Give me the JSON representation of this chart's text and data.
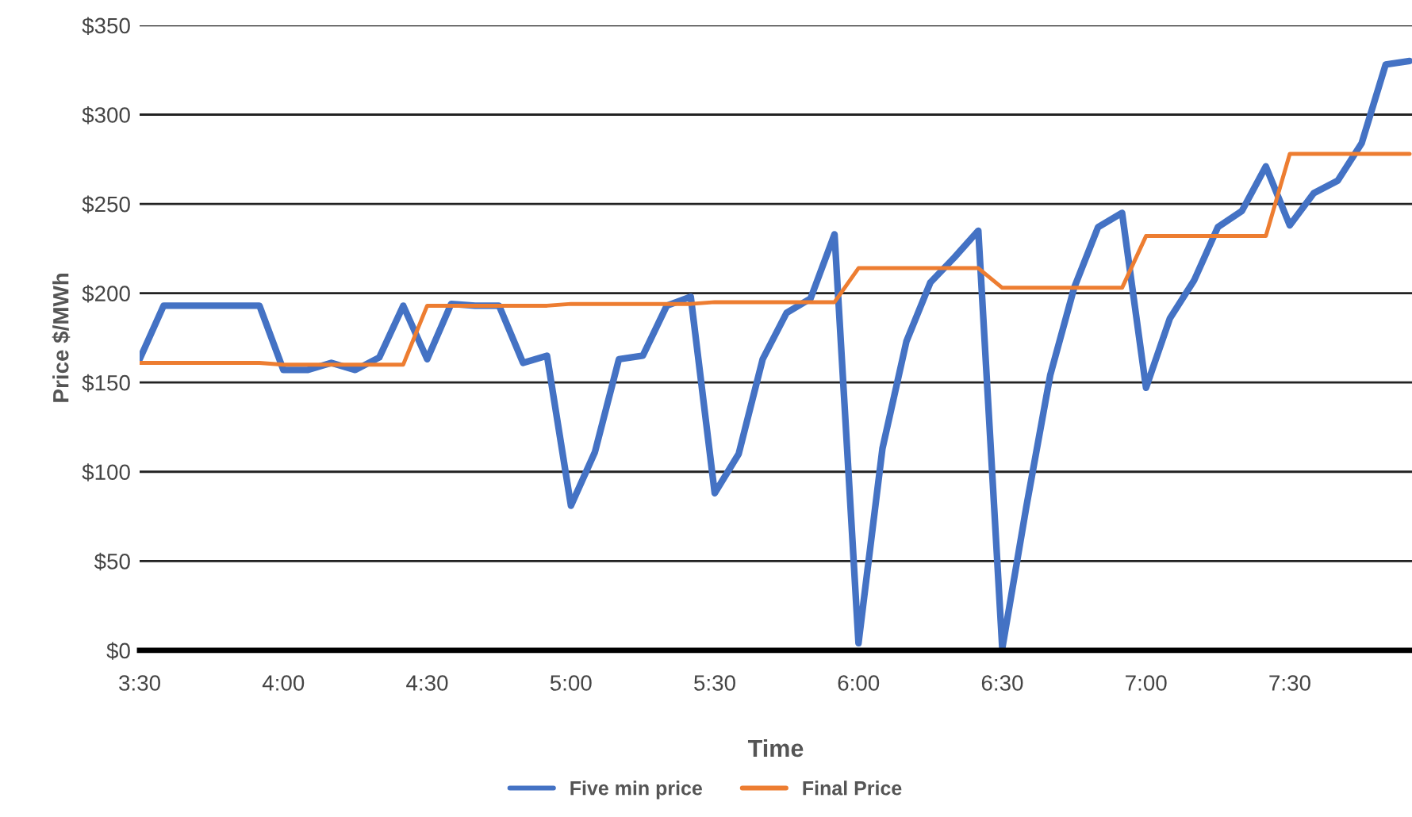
{
  "chart_data": {
    "type": "line",
    "xlabel": "Time",
    "ylabel": "Price $/MWh",
    "x": [
      3.5,
      3.5833,
      3.6667,
      3.75,
      3.8333,
      3.9167,
      4.0,
      4.0833,
      4.1667,
      4.25,
      4.3333,
      4.4167,
      4.5,
      4.5833,
      4.6667,
      4.75,
      4.8333,
      4.9167,
      5.0,
      5.0833,
      5.1667,
      5.25,
      5.3333,
      5.4167,
      5.5,
      5.5833,
      5.6667,
      5.75,
      5.8333,
      5.9167,
      6.0,
      6.0833,
      6.1667,
      6.25,
      6.3333,
      6.4167,
      6.5,
      6.5833,
      6.6667,
      6.75,
      6.8333,
      6.9167,
      7.0,
      7.0833,
      7.1667,
      7.25,
      7.3333,
      7.4167,
      7.5,
      7.5833,
      7.6667,
      7.75,
      7.8333,
      7.9167
    ],
    "series": [
      {
        "name": "Five min price",
        "color": "#4472c4",
        "values": [
          163,
          193,
          193,
          193,
          193,
          193,
          157,
          157,
          161,
          157,
          164,
          193,
          163,
          194,
          193,
          193,
          161,
          165,
          81,
          111,
          163,
          165,
          193,
          198,
          88,
          110,
          163,
          189,
          197,
          233,
          4,
          113,
          173,
          206,
          220,
          235,
          1,
          80,
          154,
          203,
          237,
          245,
          147,
          186,
          207,
          237,
          246,
          271,
          238,
          256,
          263,
          284,
          328,
          330
        ]
      },
      {
        "name": "Final Price",
        "color": "#ed7d31",
        "values": [
          161,
          161,
          161,
          161,
          161,
          161,
          160,
          160,
          160,
          160,
          160,
          160,
          193,
          193,
          193,
          193,
          193,
          193,
          194,
          194,
          194,
          194,
          194,
          194,
          195,
          195,
          195,
          195,
          195,
          195,
          214,
          214,
          214,
          214,
          214,
          214,
          203,
          203,
          203,
          203,
          203,
          203,
          232,
          232,
          232,
          232,
          232,
          232,
          278,
          278,
          278,
          278,
          278,
          278
        ]
      }
    ],
    "xlim": [
      3.5,
      7.925
    ],
    "xticks": [
      {
        "value": 3.5,
        "label": "3:30"
      },
      {
        "value": 4.0,
        "label": "4:00"
      },
      {
        "value": 4.5,
        "label": "4:30"
      },
      {
        "value": 5.0,
        "label": "5:00"
      },
      {
        "value": 5.5,
        "label": "5:30"
      },
      {
        "value": 6.0,
        "label": "6:00"
      },
      {
        "value": 6.5,
        "label": "6:30"
      },
      {
        "value": 7.0,
        "label": "7:00"
      },
      {
        "value": 7.5,
        "label": "7:30"
      }
    ],
    "ylim": [
      0,
      350
    ],
    "yticks": [
      {
        "value": 0,
        "label": "$0"
      },
      {
        "value": 50,
        "label": "$50"
      },
      {
        "value": 100,
        "label": "$100"
      },
      {
        "value": 150,
        "label": "$150"
      },
      {
        "value": 200,
        "label": "$200"
      },
      {
        "value": 250,
        "label": "$250"
      },
      {
        "value": 300,
        "label": "$300"
      },
      {
        "value": 350,
        "label": "$350"
      }
    ],
    "grid": "y",
    "legend": "bottom",
    "line_style": "solid",
    "marker": "none"
  }
}
